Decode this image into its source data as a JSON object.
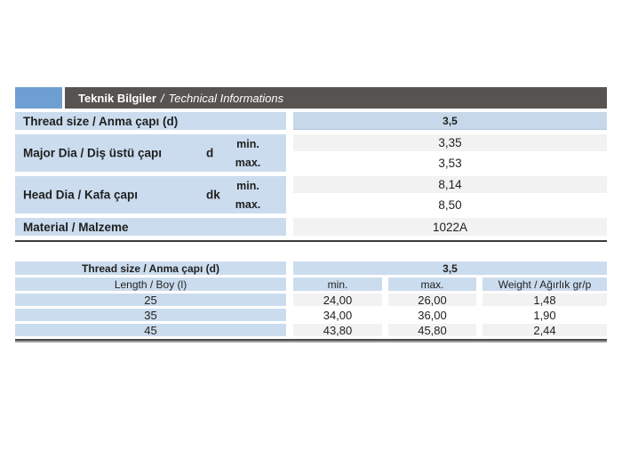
{
  "colors": {
    "accent_blue": "#6f9fd2",
    "header_bar_gray": "#565350",
    "label_cell_blue": "#cbdcee",
    "value_cell_blue": "#c6d8ea",
    "value_cell_gray": "#f2f2f2",
    "rule_dark": "#3c3c3c",
    "rule_light": "#9c9c9c"
  },
  "header": {
    "title_tr": "Teknik Bilgiler",
    "separator": "/",
    "title_en": "Technical Informations"
  },
  "table1": {
    "thread": {
      "label": "Thread size / Anma çapı (d)",
      "value": "3,5"
    },
    "dims": [
      {
        "label": "Major Dia / Diş üstü çapı",
        "symbol": "d",
        "min_label": "min.",
        "max_label": "max.",
        "min_value": "3,35",
        "max_value": "3,53"
      },
      {
        "label": "Head Dia / Kafa çapı",
        "symbol": "dk",
        "min_label": "min.",
        "max_label": "max.",
        "min_value": "8,14",
        "max_value": "8,50"
      }
    ],
    "material": {
      "label": "Material / Malzeme",
      "value": "1022A"
    }
  },
  "table2": {
    "thread_label": "Thread size / Anma çapı (d)",
    "thread_value": "3,5",
    "col_length": "Length / Boy (l)",
    "col_min": "min.",
    "col_max": "max.",
    "col_weight": "Weight / Ağırlık gr/p",
    "rows": [
      {
        "length": "25",
        "min": "24,00",
        "max": "26,00",
        "weight": "1,48"
      },
      {
        "length": "35",
        "min": "34,00",
        "max": "36,00",
        "weight": "1,90"
      },
      {
        "length": "45",
        "min": "43,80",
        "max": "45,80",
        "weight": "2,44"
      }
    ]
  }
}
